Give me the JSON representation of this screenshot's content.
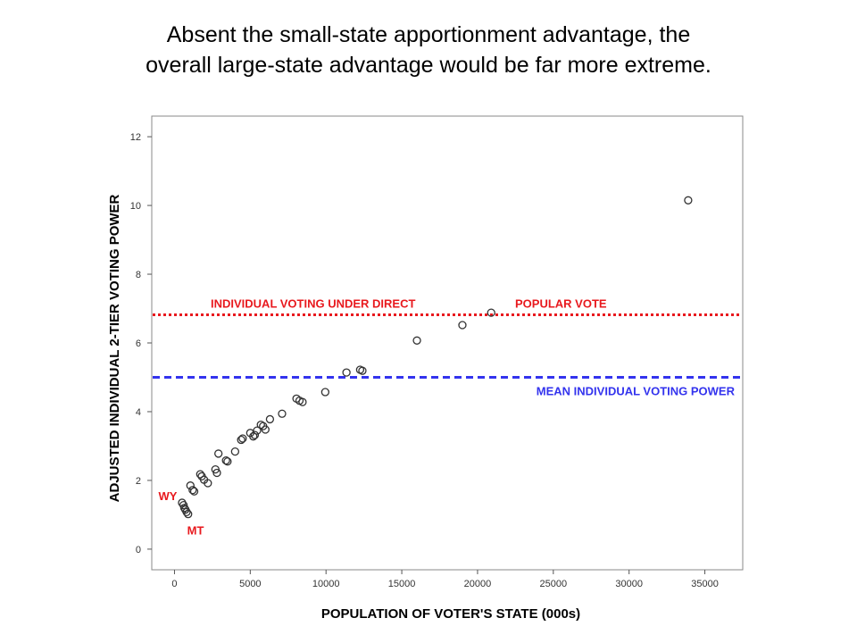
{
  "slide": {
    "title_line1": "Absent the small-state apportionment advantage, the",
    "title_line2": "overall large-state advantage would be far more extreme."
  },
  "chart_data": {
    "type": "scatter",
    "xlabel": "POPULATION OF VOTER'S STATE (000s)",
    "ylabel": "ADJUSTED INDIVIDUAL 2-TIER VOTING POWER",
    "xlim": [
      -1500,
      37500
    ],
    "ylim": [
      -0.6,
      12.6
    ],
    "x_ticks": [
      0,
      5000,
      10000,
      15000,
      20000,
      25000,
      30000,
      35000
    ],
    "y_ticks": [
      0,
      2,
      4,
      6,
      8,
      10,
      12
    ],
    "grid": false,
    "marker": "open-circle",
    "points": [
      [
        500,
        1.35
      ],
      [
        600,
        1.28
      ],
      [
        650,
        1.2
      ],
      [
        720,
        1.15
      ],
      [
        800,
        1.08
      ],
      [
        900,
        1.02
      ],
      [
        1050,
        1.85
      ],
      [
        1200,
        1.72
      ],
      [
        1300,
        1.68
      ],
      [
        1700,
        2.18
      ],
      [
        1800,
        2.12
      ],
      [
        1950,
        2.02
      ],
      [
        2200,
        1.92
      ],
      [
        2700,
        2.32
      ],
      [
        2800,
        2.22
      ],
      [
        2900,
        2.78
      ],
      [
        3400,
        2.58
      ],
      [
        3500,
        2.55
      ],
      [
        4000,
        2.84
      ],
      [
        4400,
        3.18
      ],
      [
        4500,
        3.22
      ],
      [
        5000,
        3.38
      ],
      [
        5200,
        3.28
      ],
      [
        5300,
        3.32
      ],
      [
        5450,
        3.45
      ],
      [
        5700,
        3.62
      ],
      [
        5850,
        3.58
      ],
      [
        6000,
        3.48
      ],
      [
        6300,
        3.78
      ],
      [
        7100,
        3.94
      ],
      [
        8050,
        4.38
      ],
      [
        8250,
        4.32
      ],
      [
        8450,
        4.28
      ],
      [
        9950,
        4.57
      ],
      [
        11350,
        5.14
      ],
      [
        12250,
        5.22
      ],
      [
        12400,
        5.19
      ],
      [
        16000,
        6.07
      ],
      [
        19000,
        6.52
      ],
      [
        20900,
        6.88
      ],
      [
        33900,
        10.15
      ]
    ],
    "annotations": [
      {
        "text": "WY",
        "x": 586,
        "y": 1.35,
        "color": "#e8191e"
      },
      {
        "text": "MT",
        "x": 917,
        "y": 1.02,
        "color": "#e8191e"
      }
    ],
    "reference_lines": [
      {
        "y": 6.82,
        "label_left": "INDIVIDUAL VOTING UNDER DIRECT",
        "label_right": "POPULAR VOTE",
        "color": "#e8191e",
        "style": "dotted"
      },
      {
        "y": 5.0,
        "label": "MEAN INDIVIDUAL VOTING POWER",
        "color": "#3333ee",
        "style": "dashed"
      }
    ]
  }
}
